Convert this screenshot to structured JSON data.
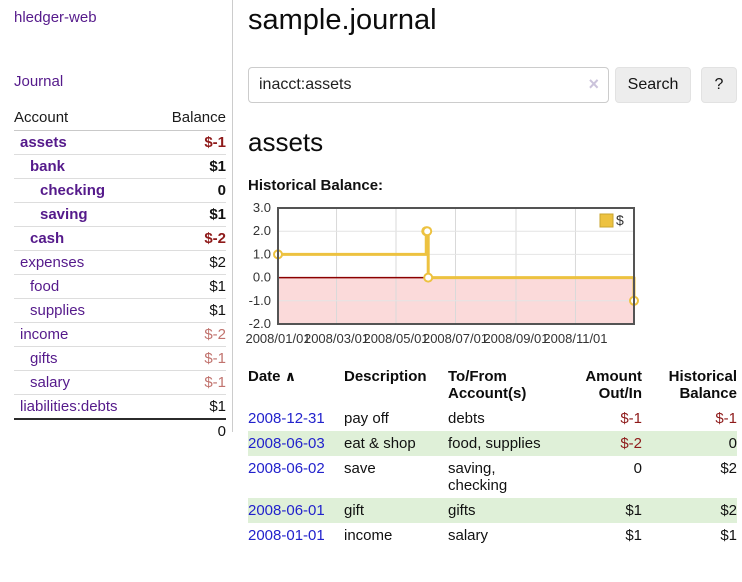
{
  "app": {
    "brand": "hledger-web"
  },
  "sidebar": {
    "nav": {
      "journal": "Journal"
    },
    "accounts_table": {
      "col_account": "Account",
      "col_balance": "Balance",
      "rows": [
        {
          "name": "assets",
          "balance": "$-1",
          "name_class": "ind1 bold",
          "bal_class": "bold neg"
        },
        {
          "name": "bank",
          "balance": "$1",
          "name_class": "ind2 bold",
          "bal_class": "bold"
        },
        {
          "name": "checking",
          "balance": "0",
          "name_class": "ind3 bold",
          "bal_class": "bold"
        },
        {
          "name": "saving",
          "balance": "$1",
          "name_class": "ind3 bold",
          "bal_class": "bold"
        },
        {
          "name": "cash",
          "balance": "$-2",
          "name_class": "ind2 bold",
          "bal_class": "bold neg"
        },
        {
          "name": "expenses",
          "balance": "$2",
          "name_class": "ind1",
          "bal_class": ""
        },
        {
          "name": "food",
          "balance": "$1",
          "name_class": "ind2",
          "bal_class": ""
        },
        {
          "name": "supplies",
          "balance": "$1",
          "name_class": "ind2",
          "bal_class": ""
        },
        {
          "name": "income",
          "balance": "$-2",
          "name_class": "ind1",
          "bal_class": "negsoft"
        },
        {
          "name": "gifts",
          "balance": "$-1",
          "name_class": "ind2",
          "bal_class": "negsoft"
        },
        {
          "name": "salary",
          "balance": "$-1",
          "name_class": "ind2 blue",
          "bal_class": "negsoft"
        },
        {
          "name": "liabilities:debts",
          "balance": "$1",
          "name_class": "ind1",
          "bal_class": ""
        }
      ],
      "total": "0"
    }
  },
  "main": {
    "title": "sample.journal",
    "search": {
      "value": "inacct:assets",
      "clear_icon": "×",
      "search_button": "Search",
      "help_button": "?"
    },
    "account_heading": "assets",
    "chart_title": "Historical Balance:"
  },
  "chart_data": {
    "type": "line",
    "step": true,
    "title": "Historical Balance",
    "series": [
      {
        "name": "$",
        "color": "#EDC240",
        "points": [
          [
            "2008-01-01",
            1
          ],
          [
            "2008-06-01",
            2
          ],
          [
            "2008-06-02",
            2
          ],
          [
            "2008-06-03",
            0
          ],
          [
            "2008-12-31",
            -1
          ]
        ]
      }
    ],
    "x_ticks": [
      "2008/01/01",
      "2008/03/01",
      "2008/05/01",
      "2008/07/01",
      "2008/09/01",
      "2008/11/01"
    ],
    "y_ticks": [
      3.0,
      2.0,
      1.0,
      0.0,
      -1.0,
      -2.0
    ],
    "ylim": [
      -2,
      3
    ],
    "xlim": [
      "2008-01-01",
      "2008-12-31"
    ],
    "legend": {
      "label": "$",
      "position": "top-right"
    },
    "grid": true,
    "below_zero_fill": "#FBDADA",
    "zero_line_color": "#8B0000",
    "border_color": "#545454"
  },
  "register": {
    "headers": {
      "date": "Date",
      "sort_icon": "∧",
      "description": "Description",
      "accounts_l1": "To/From",
      "accounts_l2": "Account(s)",
      "amount_l1": "Amount",
      "amount_l2": "Out/In",
      "balance_l1": "Historical",
      "balance_l2": "Balance"
    },
    "rows": [
      {
        "date": "2008-12-31",
        "description": "pay off",
        "accounts": "debts",
        "amount": "$-1",
        "amount_class": "neg",
        "balance": "$-1",
        "balance_class": "neg"
      },
      {
        "date": "2008-06-03",
        "description": "eat & shop",
        "accounts": "food, supplies",
        "amount": "$-2",
        "amount_class": "neg",
        "balance": "0",
        "balance_class": ""
      },
      {
        "date": "2008-06-02",
        "description": "save",
        "accounts": "saving, checking",
        "amount": "0",
        "amount_class": "",
        "balance": "$2",
        "balance_class": ""
      },
      {
        "date": "2008-06-01",
        "description": "gift",
        "accounts": "gifts",
        "amount": "$1",
        "amount_class": "",
        "balance": "$2",
        "balance_class": ""
      },
      {
        "date": "2008-01-01",
        "description": "income",
        "accounts": "salary",
        "amount": "$1",
        "amount_class": "",
        "balance": "$1",
        "balance_class": ""
      }
    ]
  }
}
